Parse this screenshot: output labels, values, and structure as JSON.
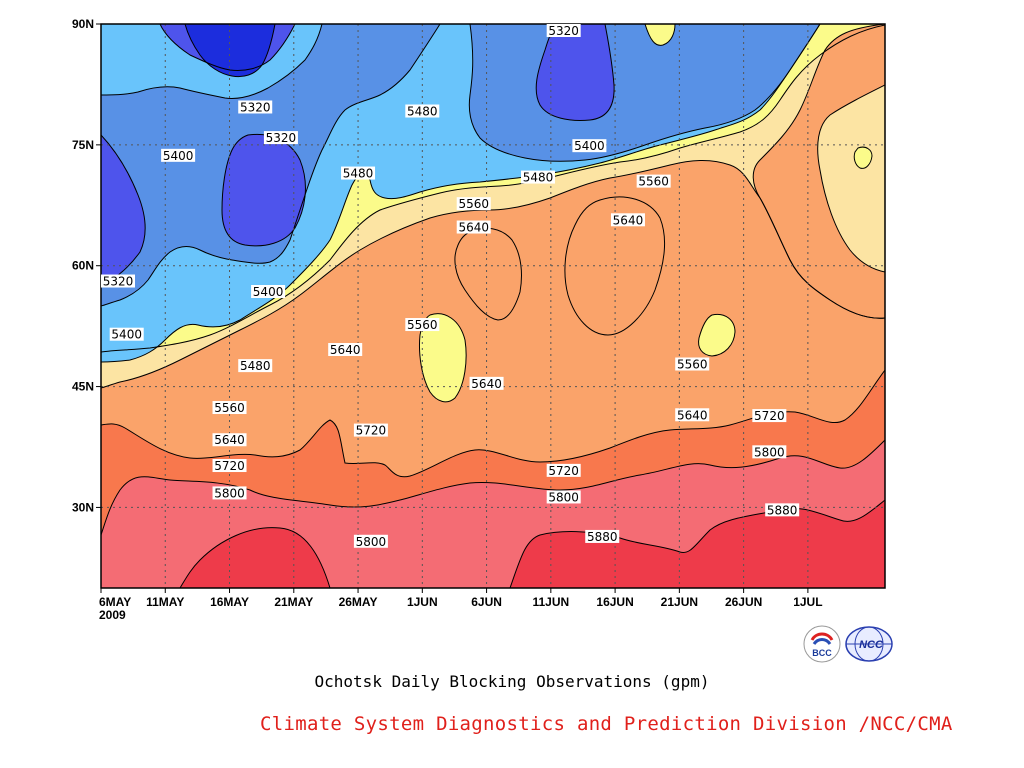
{
  "caption": "Ochotsk Daily Blocking Observations (gpm)",
  "credit": "Climate System Diagnostics and Prediction Division /NCC/CMA",
  "logos": [
    {
      "name": "bcc-logo",
      "text": "BCC"
    },
    {
      "name": "ncc-logo",
      "text": "NCC"
    }
  ],
  "chart_data": {
    "type": "heatmap",
    "subtype": "filled-contour",
    "title": "",
    "xlabel": "",
    "ylabel": "",
    "x_ticks": [
      "6MAY",
      "11MAY",
      "16MAY",
      "21MAY",
      "26MAY",
      "1JUN",
      "6JUN",
      "11JUN",
      "16JUN",
      "21JUN",
      "26JUN",
      "1JUL"
    ],
    "x_year": "2009",
    "xlim": [
      "2009-05-06",
      "2009-07-06"
    ],
    "y_ticks": [
      "30N",
      "45N",
      "60N",
      "75N",
      "90N"
    ],
    "ylim": [
      20,
      90
    ],
    "grid": true,
    "contour_interval": 80,
    "levels": [
      5320,
      5400,
      5480,
      5560,
      5640,
      5720,
      5800,
      5880
    ],
    "band_colors": [
      "#1c2ddd",
      "#4e54ec",
      "#5891e6",
      "#69c4fb",
      "#fbfb8a",
      "#fce4a3",
      "#faa36a",
      "#f8784d",
      "#f46c74",
      "#ee3b4a"
    ],
    "contour_labels": [
      {
        "date": "2009-06-11",
        "lat": 89.7,
        "value": "5320"
      },
      {
        "date": "2009-05-18",
        "lat": 79.7,
        "value": "5320"
      },
      {
        "date": "2009-05-20",
        "lat": 75.9,
        "value": "5320"
      },
      {
        "date": "2009-05-06",
        "lat": 58.1,
        "value": "5320"
      },
      {
        "date": "2009-05-12",
        "lat": 73.7,
        "value": "5400"
      },
      {
        "date": "2009-06-13",
        "lat": 74.9,
        "value": "5400"
      },
      {
        "date": "2009-05-19",
        "lat": 56.8,
        "value": "5400"
      },
      {
        "date": "2009-05-08",
        "lat": 51.5,
        "value": "5400"
      },
      {
        "date": "2009-05-31",
        "lat": 79.2,
        "value": "5480"
      },
      {
        "date": "2009-05-26",
        "lat": 71.5,
        "value": "5480"
      },
      {
        "date": "2009-06-09",
        "lat": 71.0,
        "value": "5480"
      },
      {
        "date": "2009-05-18",
        "lat": 47.6,
        "value": "5480"
      },
      {
        "date": "2009-06-04",
        "lat": 67.7,
        "value": "5560"
      },
      {
        "date": "2009-06-18",
        "lat": 70.5,
        "value": "5560"
      },
      {
        "date": "2009-05-31",
        "lat": 52.7,
        "value": "5560"
      },
      {
        "date": "2009-06-21",
        "lat": 47.8,
        "value": "5560"
      },
      {
        "date": "2009-05-16",
        "lat": 42.4,
        "value": "5560"
      },
      {
        "date": "2009-06-04",
        "lat": 64.8,
        "value": "5640"
      },
      {
        "date": "2009-06-16",
        "lat": 65.7,
        "value": "5640"
      },
      {
        "date": "2009-05-25",
        "lat": 49.6,
        "value": "5640"
      },
      {
        "date": "2009-06-05",
        "lat": 45.4,
        "value": "5640"
      },
      {
        "date": "2009-06-21",
        "lat": 41.5,
        "value": "5640"
      },
      {
        "date": "2009-05-16",
        "lat": 38.4,
        "value": "5640"
      },
      {
        "date": "2009-05-27",
        "lat": 39.6,
        "value": "5720"
      },
      {
        "date": "2009-06-27",
        "lat": 41.4,
        "value": "5720"
      },
      {
        "date": "2009-06-11",
        "lat": 34.6,
        "value": "5720"
      },
      {
        "date": "2009-05-16",
        "lat": 35.2,
        "value": "5720"
      },
      {
        "date": "2009-05-16",
        "lat": 31.8,
        "value": "5800"
      },
      {
        "date": "2009-06-11",
        "lat": 31.3,
        "value": "5800"
      },
      {
        "date": "2009-06-27",
        "lat": 36.9,
        "value": "5800"
      },
      {
        "date": "2009-05-27",
        "lat": 25.8,
        "value": "5800"
      },
      {
        "date": "2009-06-14",
        "lat": 26.4,
        "value": "5880"
      },
      {
        "date": "2009-06-28",
        "lat": 29.7,
        "value": "5880"
      }
    ]
  }
}
